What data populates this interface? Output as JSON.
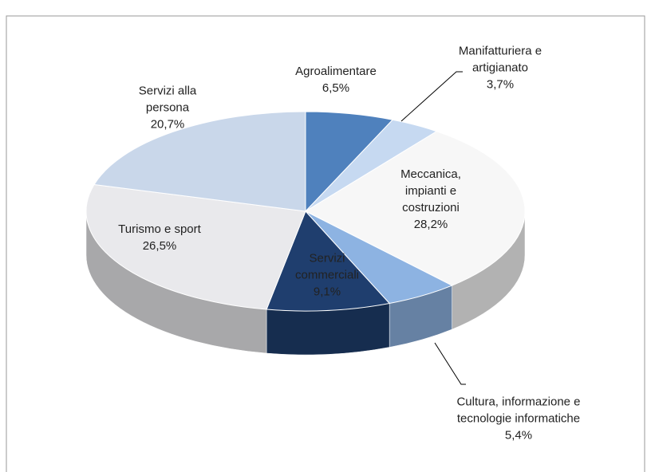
{
  "chart_data": {
    "type": "pie3d",
    "categories": [
      "Agroalimentare",
      "Manifatturiera e artigianato",
      "Meccanica, impianti e costruzioni",
      "Cultura, informazione e tecnologie informatiche",
      "Servizi commerciali",
      "Turismo e sport",
      "Servizi alla persona"
    ],
    "values": [
      6.5,
      3.7,
      28.2,
      5.4,
      9.1,
      26.5,
      20.7
    ],
    "value_labels": [
      "6,5%",
      "3,7%",
      "28,2%",
      "5,4%",
      "9,1%",
      "26,5%",
      "20,7%"
    ],
    "colors": [
      "#4f81bd",
      "#c6d9f1",
      "#f7f7f7",
      "#8db3e2",
      "#1f3e6e",
      "#e9e9ec",
      "#c9d7ea"
    ]
  }
}
